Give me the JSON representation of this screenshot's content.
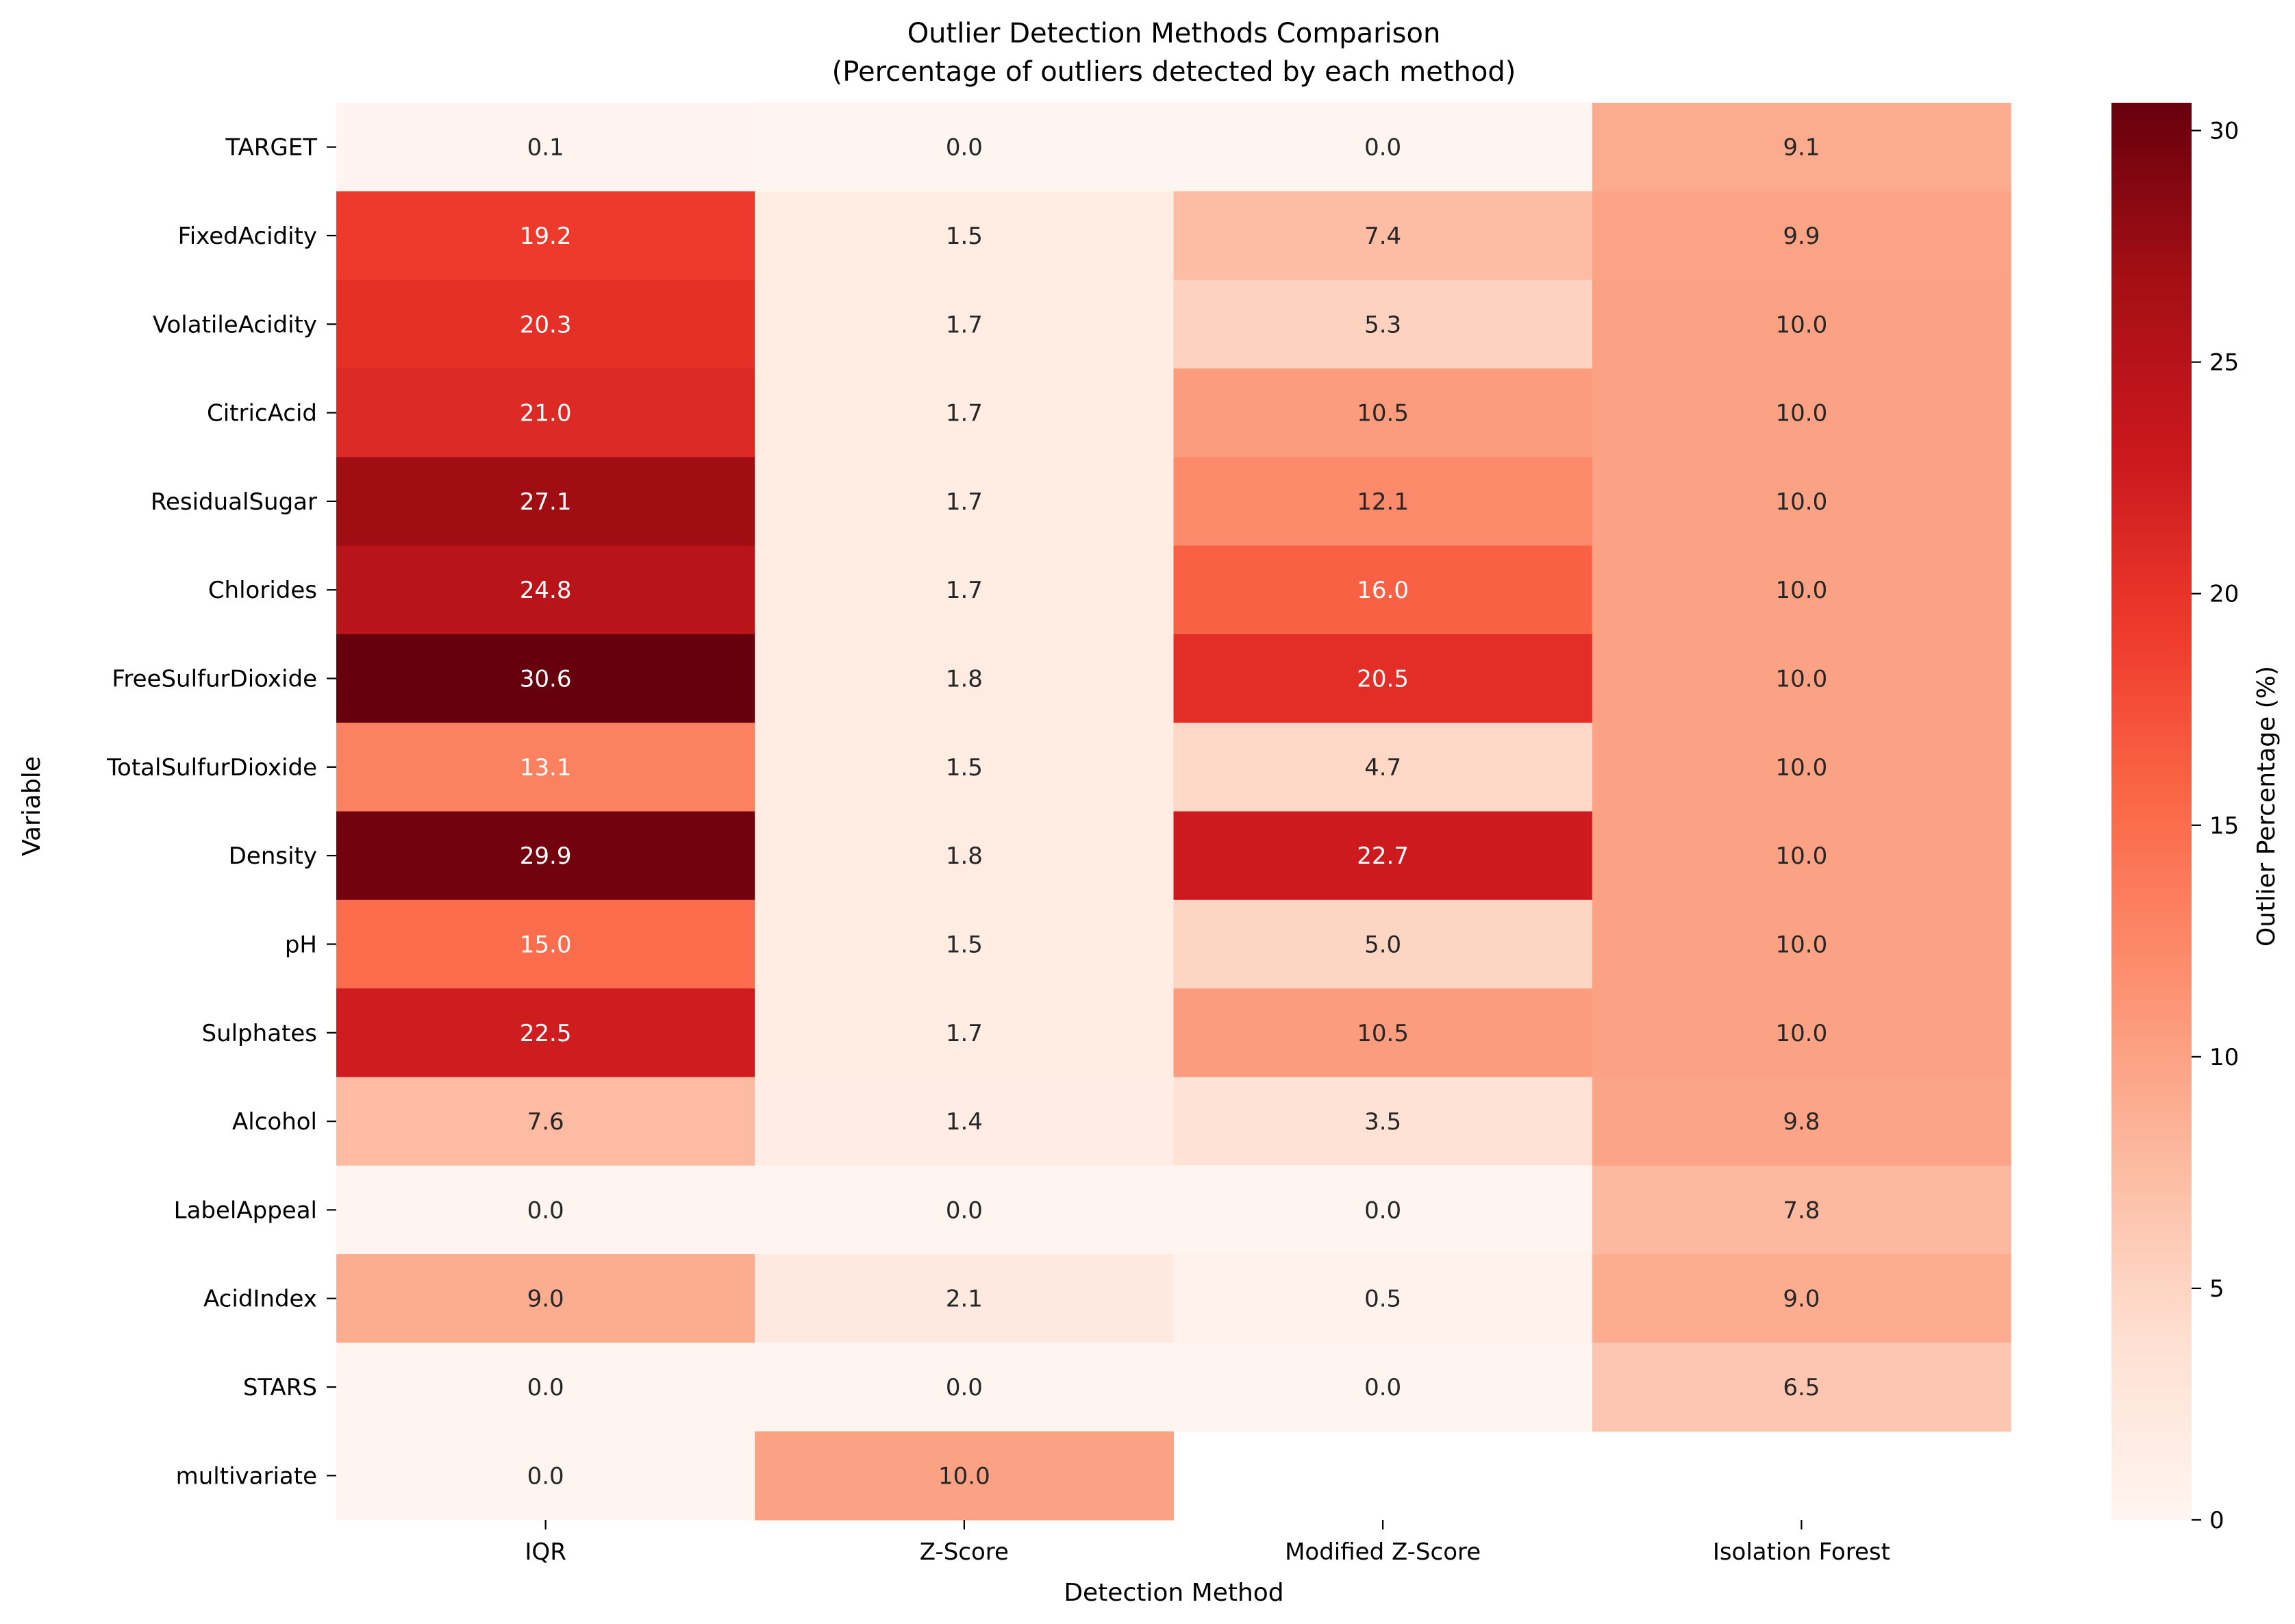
{
  "chart_data": {
    "type": "heatmap",
    "title": "Outlier Detection Methods Comparison",
    "subtitle": "(Percentage of outliers detected by each method)",
    "xlabel": "Detection Method",
    "ylabel": "Variable",
    "columns": [
      "IQR",
      "Z-Score",
      "Modified Z-Score",
      "Isolation Forest"
    ],
    "rows": [
      "TARGET",
      "FixedAcidity",
      "VolatileAcidity",
      "CitricAcid",
      "ResidualSugar",
      "Chlorides",
      "FreeSulfurDioxide",
      "TotalSulfurDioxide",
      "Density",
      "pH",
      "Sulphates",
      "Alcohol",
      "LabelAppeal",
      "AcidIndex",
      "STARS",
      "multivariate"
    ],
    "values": [
      [
        0.1,
        0.0,
        0.0,
        9.1
      ],
      [
        19.2,
        1.5,
        7.4,
        9.9
      ],
      [
        20.3,
        1.7,
        5.3,
        10.0
      ],
      [
        21.0,
        1.7,
        10.5,
        10.0
      ],
      [
        27.1,
        1.7,
        12.1,
        10.0
      ],
      [
        24.8,
        1.7,
        16.0,
        10.0
      ],
      [
        30.6,
        1.8,
        20.5,
        10.0
      ],
      [
        13.1,
        1.5,
        4.7,
        10.0
      ],
      [
        29.9,
        1.8,
        22.7,
        10.0
      ],
      [
        15.0,
        1.5,
        5.0,
        10.0
      ],
      [
        22.5,
        1.7,
        10.5,
        10.0
      ],
      [
        7.6,
        1.4,
        3.5,
        9.8
      ],
      [
        0.0,
        0.0,
        0.0,
        7.8
      ],
      [
        9.0,
        2.1,
        0.5,
        9.0
      ],
      [
        0.0,
        0.0,
        0.0,
        6.5
      ],
      [
        0.0,
        10.0,
        null,
        null
      ]
    ],
    "colorbar": {
      "label": "Outlier Percentage (%)",
      "range": [
        0,
        30.6
      ],
      "ticks": [
        0,
        5,
        10,
        15,
        20,
        25,
        30
      ]
    },
    "colormap": "Reds",
    "grid": false
  }
}
